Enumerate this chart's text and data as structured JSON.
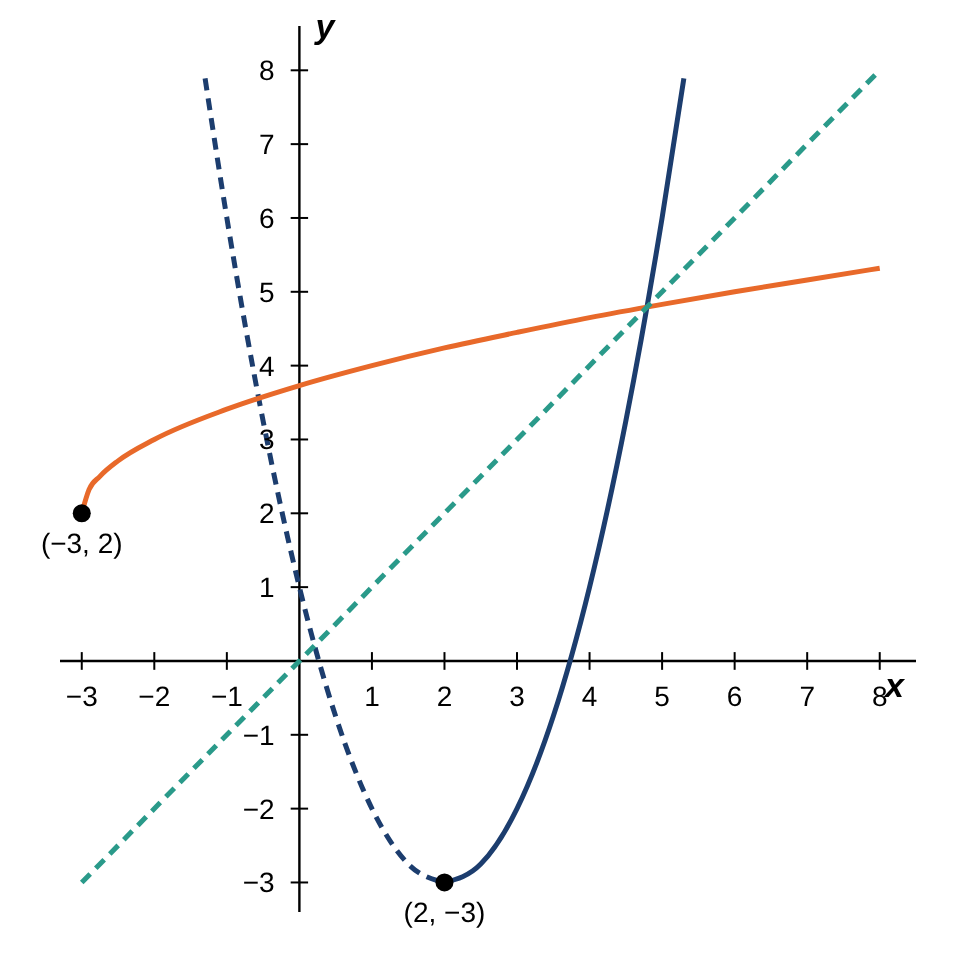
{
  "chart_data": {
    "type": "line",
    "xlabel": "x",
    "ylabel": "y",
    "xlim": [
      -3.3,
      8.5
    ],
    "ylim": [
      -3.4,
      8.6
    ],
    "xticks": [
      {
        "value": -3,
        "label": "−3"
      },
      {
        "value": -2,
        "label": "−2"
      },
      {
        "value": -1,
        "label": "−1"
      },
      1,
      2,
      3,
      4,
      5,
      6,
      7,
      8
    ],
    "yticks": [
      {
        "value": -3,
        "label": "−3"
      },
      {
        "value": -2,
        "label": "−2"
      },
      {
        "value": -1,
        "label": "−1"
      },
      1,
      2,
      3,
      4,
      5,
      6,
      7,
      8
    ],
    "grid": false,
    "marker": "none",
    "series": [
      {
        "color": "#1c3d6e",
        "line_style": "dashed",
        "x": [
          -1.3,
          -1,
          -0.5,
          0,
          0.5,
          1,
          1.5,
          2
        ],
        "values": [
          7.89,
          6,
          3.25,
          1,
          -0.75,
          -2,
          -2.75,
          -3
        ]
      },
      {
        "color": "#1c3d6e",
        "line_style": "solid",
        "x": [
          2,
          2.5,
          3,
          3.5,
          4,
          4.5,
          5,
          5.3
        ],
        "values": [
          -3,
          -2.75,
          -2,
          -0.75,
          1,
          3.25,
          6,
          7.89
        ]
      },
      {
        "color": "#e8692a",
        "line_style": "solid",
        "x": [
          -3,
          -2.9,
          -2.75,
          -2.5,
          -2,
          -1,
          0,
          1,
          2,
          3,
          4,
          5,
          6,
          7,
          8
        ],
        "values": [
          2,
          2.32,
          2.5,
          2.71,
          3,
          3.41,
          3.73,
          4,
          4.24,
          4.45,
          4.65,
          4.83,
          5,
          5.16,
          5.32
        ]
      },
      {
        "color": "#2a9a8a",
        "line_style": "dashed",
        "x": [
          -3,
          8
        ],
        "values": [
          -3,
          8
        ]
      },
      {
        "type": "scatter",
        "marker": "circle",
        "color": "#000000",
        "x": [
          -3,
          2
        ],
        "values": [
          2,
          -3
        ]
      }
    ],
    "annotations": [
      {
        "text": "(−3, 2)",
        "x": -3,
        "y": 2
      },
      {
        "text": "(2, −3)",
        "x": 2,
        "y": -3
      }
    ]
  }
}
